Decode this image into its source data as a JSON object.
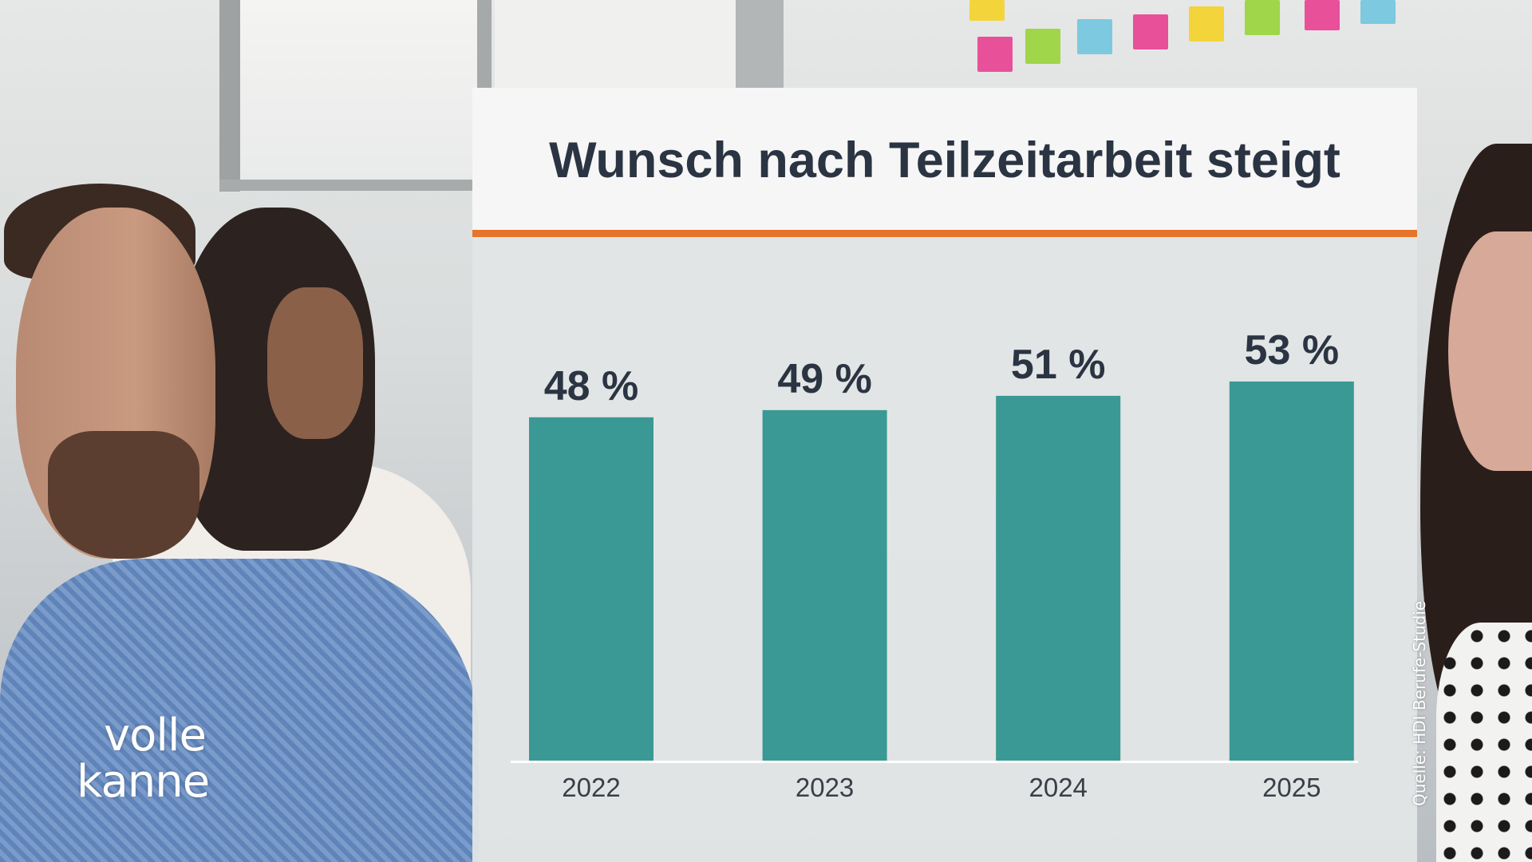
{
  "chart_data": {
    "type": "bar",
    "title": "Wunsch nach Teilzeitarbeit steigt",
    "categories": [
      "2022",
      "2023",
      "2024",
      "2025"
    ],
    "values": [
      48,
      49,
      51,
      53
    ],
    "value_labels": [
      "48 %",
      "49 %",
      "51 %",
      "53 %"
    ],
    "ylim": [
      0,
      53
    ],
    "grid": false,
    "bar_color": "#3a9994",
    "accent_color": "#e6742a"
  },
  "branding": {
    "logo_line1": "volle",
    "logo_line2": "kanne"
  },
  "source": "Quelle: HDI Berufe-Studie"
}
